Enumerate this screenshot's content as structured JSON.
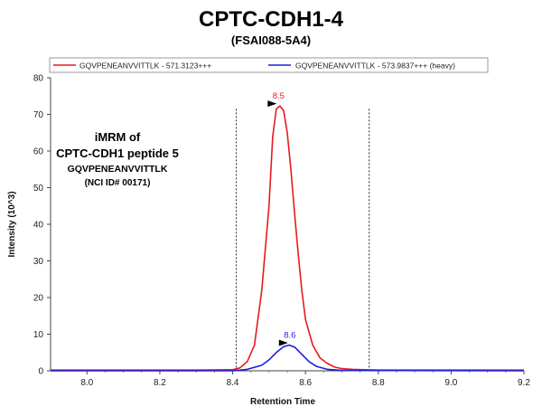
{
  "chart_data": {
    "type": "line",
    "title": "CPTC-CDH1-4",
    "subtitle": "(FSAI088-5A4)",
    "xlabel": "Retention Time",
    "ylabel": "Intensity (10^3)",
    "xlim": [
      7.9,
      9.2
    ],
    "ylim": [
      0,
      80
    ],
    "x_ticks": [
      "8.0",
      "8.2",
      "8.4",
      "8.6",
      "8.8",
      "9.0",
      "9.2"
    ],
    "y_ticks": [
      "0",
      "10",
      "20",
      "30",
      "40",
      "50",
      "60",
      "70",
      "80"
    ],
    "grid": false,
    "legend_position": "top",
    "boundaries": [
      8.41,
      8.775
    ],
    "annotation_lines": [
      "iMRM of",
      "CPTC-CDH1 peptide 5",
      "GQVPENEANVVITTLK",
      "(NCI ID# 00171)"
    ],
    "series": [
      {
        "name": "GQVPENEANVVITTLK - 571.3123+++",
        "color": "#e8191c",
        "peak_label": "8.5",
        "peak_x": 8.526,
        "peak_y": 72.3,
        "x": [
          7.9,
          8.3,
          8.4,
          8.42,
          8.44,
          8.46,
          8.48,
          8.5,
          8.51,
          8.52,
          8.53,
          8.54,
          8.55,
          8.56,
          8.57,
          8.58,
          8.59,
          8.6,
          8.62,
          8.64,
          8.66,
          8.68,
          8.7,
          8.73,
          8.76,
          8.8,
          9.2
        ],
        "y": [
          0.2,
          0.2,
          0.3,
          0.8,
          2.5,
          7.0,
          22.0,
          45.0,
          64.0,
          71.5,
          72.3,
          71.0,
          65.0,
          55.0,
          43.0,
          32.0,
          22.0,
          14.0,
          7.0,
          3.5,
          2.0,
          1.0,
          0.6,
          0.4,
          0.3,
          0.2,
          0.2
        ]
      },
      {
        "name": "GQVPENEANVVITTLK - 573.9837+++ (heavy)",
        "color": "#1b1fdc",
        "peak_label": "8.6",
        "peak_x": 8.557,
        "peak_y": 7.0,
        "x": [
          7.9,
          8.4,
          8.44,
          8.48,
          8.5,
          8.52,
          8.54,
          8.555,
          8.57,
          8.59,
          8.61,
          8.63,
          8.66,
          8.7,
          9.2
        ],
        "y": [
          0.0,
          0.0,
          0.4,
          1.5,
          3.0,
          5.0,
          6.6,
          7.0,
          6.5,
          4.5,
          2.5,
          1.2,
          0.4,
          0.1,
          0.0
        ]
      }
    ]
  }
}
